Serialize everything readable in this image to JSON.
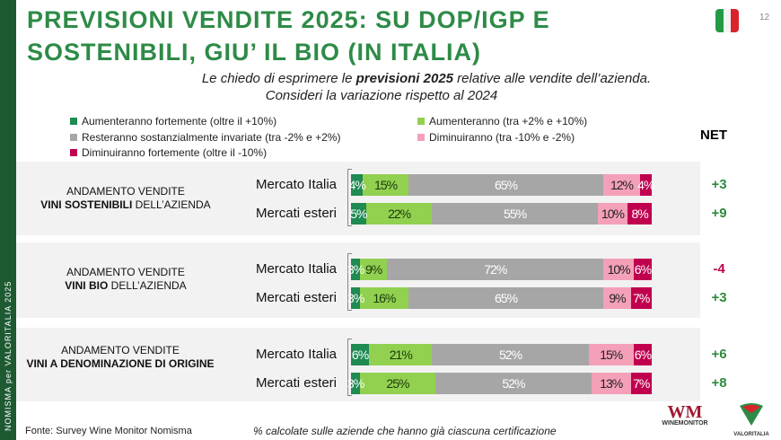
{
  "side_text": "NOMISMA per VALORITALIA 2025",
  "title_line1": "PREVISIONI VENDITE 2025: SU DOP/IGP E",
  "title_line2": "SOSTENIBILI, GIU’ IL BIO (IN ITALIA)",
  "page_number": "12",
  "subtitle_line1_pre": "Le chiedo di esprimere le ",
  "subtitle_line1_bold": "previsioni 2025",
  "subtitle_line1_post": " relative alle vendite dell’azienda.",
  "subtitle_line2": "Consideri la variazione rispetto al 2024",
  "net_header": "NET",
  "footer_source": "Fonte: Survey Wine Monitor Nomisma",
  "footer_note": "% calcolate sulle aziende che hanno già ciascuna certificazione",
  "logos": [
    "WINEMONITOR Nomisma",
    "VALORITALIA"
  ],
  "colors": {
    "strong_up": "#1f8a52",
    "up": "#92d050",
    "same": "#a6a6a6",
    "down": "#f4a0b8",
    "strong_down": "#c0004f",
    "title": "#2e8b47",
    "net_pos": "#2e8b3e",
    "net_neg": "#c0004f"
  },
  "chart_data": {
    "type": "bar",
    "stacked": true,
    "orientation": "horizontal",
    "unit": "%",
    "legend": [
      "Aumenteranno fortemente (oltre il +10%)",
      "Aumenteranno (tra +2% e +10%)",
      "Resteranno sostanzialmente invariate (tra -2% e +2%)",
      "Diminuiranno (tra -10% e -2%)",
      "Diminuiranno fortemente (oltre il -10%)"
    ],
    "legend_placement": "top",
    "groups": [
      {
        "label_line1": "ANDAMENTO VENDITE",
        "label_bold": "VINI SOSTENIBILI",
        "label_rest": " DELL’AZIENDA",
        "rows": [
          {
            "name": "Mercato Italia",
            "values": [
              4,
              15,
              65,
              12,
              4
            ],
            "net": "+3"
          },
          {
            "name": "Mercati esteri",
            "values": [
              5,
              22,
              55,
              10,
              8
            ],
            "net": "+9"
          }
        ]
      },
      {
        "label_line1": "ANDAMENTO VENDITE",
        "label_bold": "VINI BIO",
        "label_rest": " DELL’AZIENDA",
        "rows": [
          {
            "name": "Mercato Italia",
            "values": [
              3,
              9,
              72,
              10,
              6
            ],
            "net": "-4"
          },
          {
            "name": "Mercati esteri",
            "values": [
              3,
              16,
              65,
              9,
              7
            ],
            "net": "+3"
          }
        ]
      },
      {
        "label_line1": "ANDAMENTO VENDITE",
        "label_bold": "VINI A DENOMINAZIONE DI ORIGINE",
        "label_rest": "",
        "rows": [
          {
            "name": "Mercato Italia",
            "values": [
              6,
              21,
              52,
              15,
              6
            ],
            "net": "+6"
          },
          {
            "name": "Mercati esteri",
            "values": [
              3,
              25,
              52,
              13,
              7
            ],
            "net": "+8"
          }
        ]
      }
    ]
  }
}
